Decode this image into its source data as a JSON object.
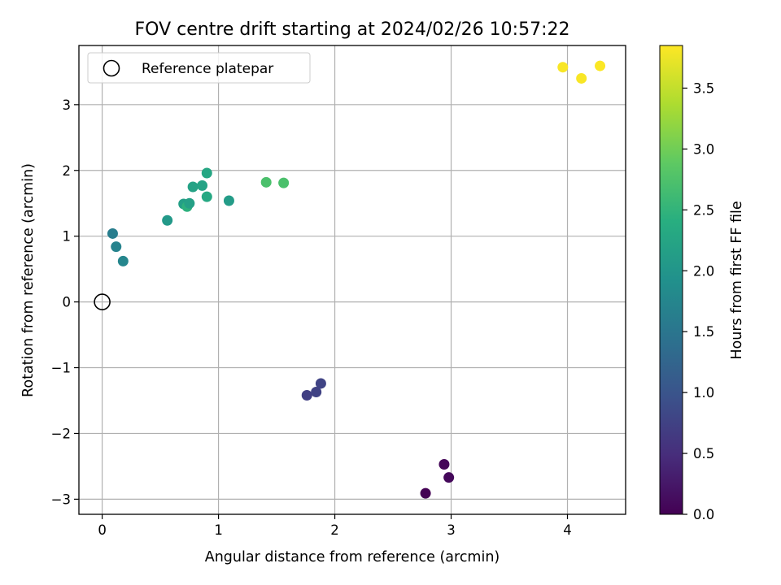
{
  "chart_data": {
    "type": "scatter",
    "title": "FOV centre drift starting at 2024/02/26 10:57:22",
    "xlabel": "Angular distance from reference (arcmin)",
    "ylabel": "Rotation from reference (arcmin)",
    "xlim": [
      -0.2,
      4.5
    ],
    "ylim": [
      -3.23,
      3.9
    ],
    "xticks": [
      0,
      1,
      2,
      3,
      4
    ],
    "yticks": [
      -3,
      -2,
      -1,
      0,
      1,
      2,
      3
    ],
    "grid": true,
    "legend": {
      "placement": "top-left",
      "entries": [
        "Reference platepar"
      ]
    },
    "reference_point": {
      "x": 0,
      "y": 0
    },
    "colorbar": {
      "label": "Hours from first FF file",
      "range": [
        0,
        3.85
      ],
      "ticks": [
        0.0,
        0.5,
        1.0,
        1.5,
        2.0,
        2.5,
        3.0,
        3.5
      ],
      "tick_labels": [
        "0.0",
        "0.5",
        "1.0",
        "1.5",
        "2.0",
        "2.5",
        "3.0",
        "3.5"
      ],
      "colormap": "viridis"
    },
    "points": [
      {
        "x": 2.78,
        "y": -2.91,
        "c": 0.0
      },
      {
        "x": 2.94,
        "y": -2.47,
        "c": 0.05
      },
      {
        "x": 2.98,
        "y": -2.67,
        "c": 0.08
      },
      {
        "x": 1.76,
        "y": -1.42,
        "c": 0.72
      },
      {
        "x": 1.84,
        "y": -1.37,
        "c": 0.75
      },
      {
        "x": 1.88,
        "y": -1.24,
        "c": 0.78
      },
      {
        "x": 0.09,
        "y": 1.04,
        "c": 1.62
      },
      {
        "x": 0.12,
        "y": 0.84,
        "c": 1.7
      },
      {
        "x": 0.18,
        "y": 0.62,
        "c": 1.75
      },
      {
        "x": 0.56,
        "y": 1.24,
        "c": 2.05
      },
      {
        "x": 0.7,
        "y": 1.49,
        "c": 2.15
      },
      {
        "x": 0.73,
        "y": 1.45,
        "c": 2.45
      },
      {
        "x": 0.75,
        "y": 1.5,
        "c": 2.18
      },
      {
        "x": 0.78,
        "y": 1.75,
        "c": 2.2
      },
      {
        "x": 0.86,
        "y": 1.77,
        "c": 2.22
      },
      {
        "x": 0.9,
        "y": 1.96,
        "c": 2.28
      },
      {
        "x": 0.9,
        "y": 1.6,
        "c": 2.3
      },
      {
        "x": 1.09,
        "y": 1.54,
        "c": 2.1
      },
      {
        "x": 1.41,
        "y": 1.82,
        "c": 2.72
      },
      {
        "x": 1.56,
        "y": 1.81,
        "c": 2.72
      },
      {
        "x": 3.96,
        "y": 3.57,
        "c": 3.82
      },
      {
        "x": 4.12,
        "y": 3.4,
        "c": 3.82
      },
      {
        "x": 4.28,
        "y": 3.59,
        "c": 3.84
      }
    ]
  }
}
